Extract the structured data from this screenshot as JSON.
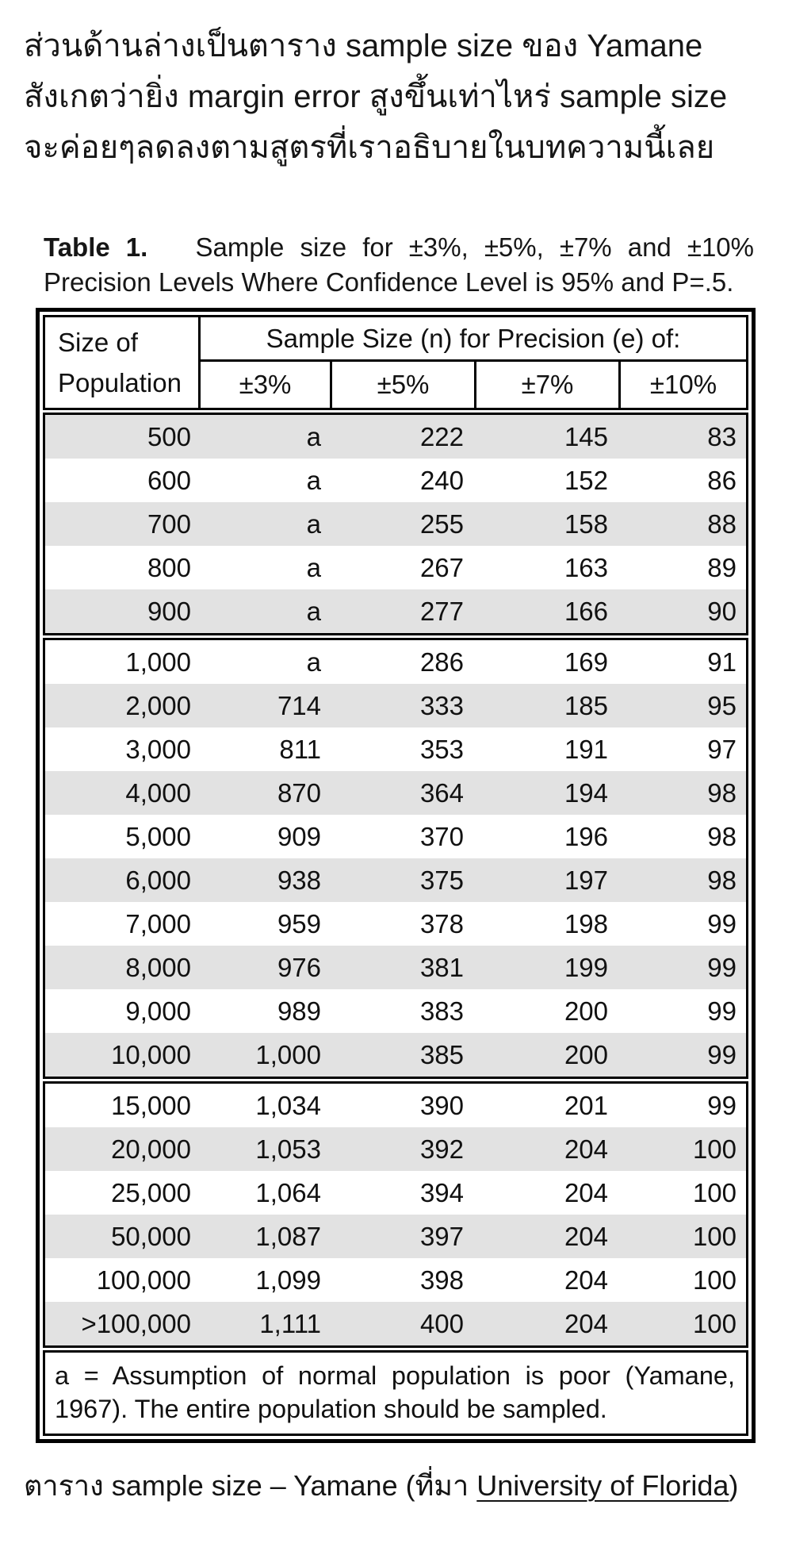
{
  "intro": {
    "lines": [
      "ส่วนด้านล่างเป็นตาราง sample size ของ Yamane",
      "สังเกตว่ายิ่ง margin error สูงขึ้นเท่าไหร่ sample size",
      "จะค่อยๆลดลงตามสูตรที่เราอธิบายในบทความนี้เลย"
    ]
  },
  "table_title": {
    "label": "Table 1.",
    "text": "Sample size for ±3%, ±5%, ±7% and ±10% Precision Levels Where Confidence Level is 95% and P=.5."
  },
  "table": {
    "header": {
      "population_line1": "Size of",
      "population_line2": "Population",
      "span": "Sample Size (n) for Precision (e) of:",
      "precisions": [
        "±3%",
        "±5%",
        "±7%",
        "±10%"
      ]
    },
    "blocks": [
      {
        "rows": [
          [
            "500",
            "a",
            "222",
            "145",
            "83"
          ],
          [
            "600",
            "a",
            "240",
            "152",
            "86"
          ],
          [
            "700",
            "a",
            "255",
            "158",
            "88"
          ],
          [
            "800",
            "a",
            "267",
            "163",
            "89"
          ],
          [
            "900",
            "a",
            "277",
            "166",
            "90"
          ]
        ]
      },
      {
        "rows": [
          [
            "1,000",
            "a",
            "286",
            "169",
            "91"
          ],
          [
            "2,000",
            "714",
            "333",
            "185",
            "95"
          ],
          [
            "3,000",
            "811",
            "353",
            "191",
            "97"
          ],
          [
            "4,000",
            "870",
            "364",
            "194",
            "98"
          ],
          [
            "5,000",
            "909",
            "370",
            "196",
            "98"
          ],
          [
            "6,000",
            "938",
            "375",
            "197",
            "98"
          ],
          [
            "7,000",
            "959",
            "378",
            "198",
            "99"
          ],
          [
            "8,000",
            "976",
            "381",
            "199",
            "99"
          ],
          [
            "9,000",
            "989",
            "383",
            "200",
            "99"
          ],
          [
            "10,000",
            "1,000",
            "385",
            "200",
            "99"
          ]
        ]
      },
      {
        "rows": [
          [
            "15,000",
            "1,034",
            "390",
            "201",
            "99"
          ],
          [
            "20,000",
            "1,053",
            "392",
            "204",
            "100"
          ],
          [
            "25,000",
            "1,064",
            "394",
            "204",
            "100"
          ],
          [
            "50,000",
            "1,087",
            "397",
            "204",
            "100"
          ],
          [
            "100,000",
            "1,099",
            "398",
            "204",
            "100"
          ],
          [
            ">100,000",
            "1,111",
            "400",
            "204",
            "100"
          ]
        ]
      }
    ],
    "footnote": "a = Assumption of normal population is poor (Yamane, 1967).  The entire population should be sampled."
  },
  "caption": {
    "prefix": "ตาราง sample size – Yamane (ที่มา ",
    "link": "University of Florida",
    "suffix": ")"
  },
  "colors": {
    "stripe": "#e2e2e2",
    "border": "#000000",
    "text": "#111111",
    "background": "#ffffff"
  }
}
